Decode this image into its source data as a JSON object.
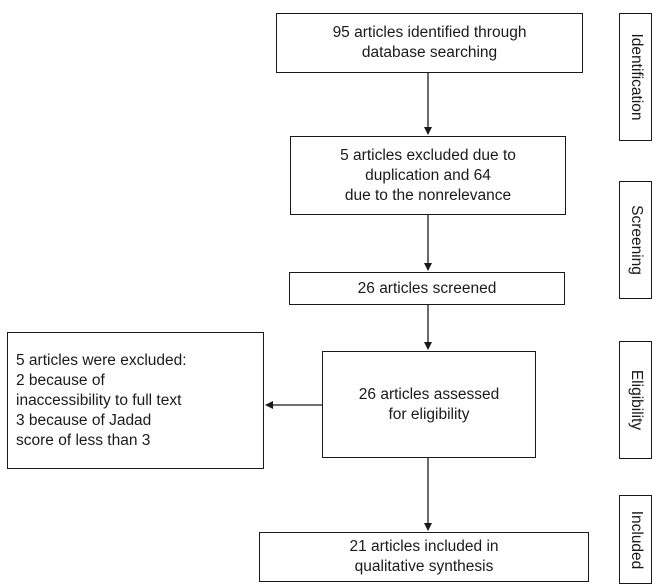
{
  "boxes": {
    "identified": "95 articles identified through\ndatabase searching",
    "excluded_duplication": "5 articles excluded due to\nduplication and 64\ndue to the nonrelevance",
    "screened": "26 articles screened",
    "assessed": "26 articles assessed\nfor eligibility",
    "excluded_eligibility": "5 articles were excluded:\n2 because of\ninaccessibility to full text\n3 because of Jadad\nscore of less than 3",
    "included": "21 articles included in\nqualitative synthesis"
  },
  "stages": {
    "identification": "Identification",
    "screening": "Screening",
    "eligibility": "Eligibility",
    "included": "Included"
  }
}
